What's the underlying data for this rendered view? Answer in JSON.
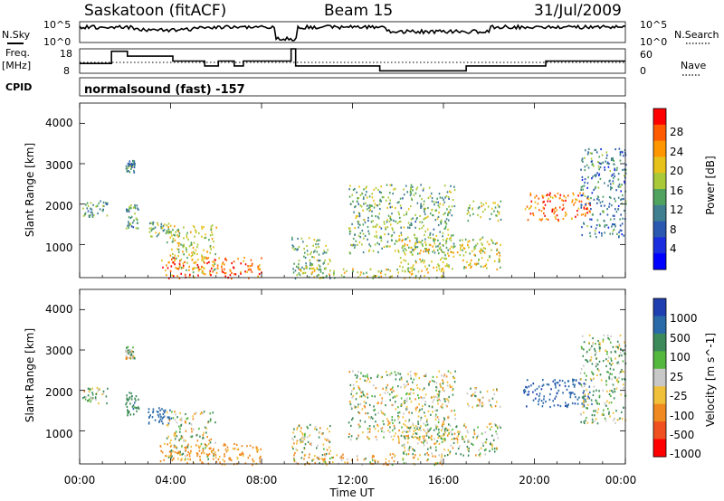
{
  "header": {
    "station": "Saskatoon (fitACF)",
    "beam": "Beam 15",
    "date": "31/Jul/2009"
  },
  "top_strip": {
    "left_label": "N.Sky",
    "left_ticks": [
      "10^5",
      "10^0"
    ],
    "right_ticks": [
      "10^5",
      "10^0"
    ],
    "right_label": "N.Search"
  },
  "freq_strip": {
    "left_label_line1": "Freq.",
    "left_label_line2": "[MHz]",
    "left_ticks": [
      "18",
      "8"
    ],
    "right_ticks": [
      "60",
      "0"
    ],
    "right_label": "Nave"
  },
  "cpid": {
    "label": "CPID",
    "value": "normalsound (fast) -157"
  },
  "x_axis": {
    "title": "Time UT",
    "ticks": [
      "00:00",
      "04:00",
      "08:00",
      "12:00",
      "16:00",
      "20:00",
      "00:00"
    ]
  },
  "y_axis": {
    "title": "Slant Range [km]",
    "ticks": [
      "4000",
      "3000",
      "2000",
      "1000"
    ]
  },
  "power_colorbar": {
    "title": "Power [dB]",
    "ticks": [
      "28",
      "24",
      "20",
      "16",
      "12",
      "8",
      "4"
    ],
    "colors": [
      "#ff0000",
      "#ff5a00",
      "#ff9600",
      "#e7c21a",
      "#a9c939",
      "#4fa35f",
      "#3f7f90",
      "#2a58b0",
      "#1a2ee0",
      "#0000ff"
    ]
  },
  "velocity_colorbar": {
    "title": "Velocity [m s^-1]",
    "ticks": [
      "1000",
      "500",
      "100",
      "25",
      "-25",
      "-100",
      "-500",
      "-1000"
    ],
    "colors": [
      "#1f3fb0",
      "#2a6aa8",
      "#3c8a5a",
      "#54b83f",
      "#c8c8c8",
      "#f0c03a",
      "#f08a20",
      "#f05020",
      "#ff0000"
    ]
  },
  "chart_data": {
    "type": "heatmap",
    "x_range_hours": [
      0,
      24
    ],
    "y_range_km": [
      180,
      4500
    ],
    "power_db_range": [
      0,
      30
    ],
    "velocity_range": [
      -1000,
      1000
    ],
    "data_gap_hours": [
      8.0,
      9.3
    ],
    "echo_regions": [
      {
        "t": [
          0.1,
          1.2
        ],
        "r": [
          1700,
          2100
        ],
        "power": 12,
        "vel": 0
      },
      {
        "t": [
          2.0,
          2.4
        ],
        "r": [
          2800,
          3100
        ],
        "power": 10,
        "vel": 0
      },
      {
        "t": [
          2.0,
          2.6
        ],
        "r": [
          1400,
          2000
        ],
        "power": 12,
        "vel": 200
      },
      {
        "t": [
          3.0,
          4.0
        ],
        "r": [
          1200,
          1600
        ],
        "power": 14,
        "vel": 600
      },
      {
        "t": [
          3.8,
          6.0
        ],
        "r": [
          300,
          1500
        ],
        "power": 18,
        "vel": -10
      },
      {
        "t": [
          3.5,
          8.0
        ],
        "r": [
          180,
          700
        ],
        "power": 26,
        "vel": -200
      },
      {
        "t": [
          9.3,
          11.0
        ],
        "r": [
          180,
          1200
        ],
        "power": 14,
        "vel": 0
      },
      {
        "t": [
          9.5,
          16.0
        ],
        "r": [
          180,
          450
        ],
        "power": 18,
        "vel": -80
      },
      {
        "t": [
          11.8,
          16.5
        ],
        "r": [
          800,
          2500
        ],
        "power": 14,
        "vel": 0
      },
      {
        "t": [
          14.0,
          18.5
        ],
        "r": [
          400,
          1200
        ],
        "power": 18,
        "vel": 0
      },
      {
        "t": [
          17.0,
          18.5
        ],
        "r": [
          1600,
          2100
        ],
        "power": 16,
        "vel": 0
      },
      {
        "t": [
          19.5,
          22.5
        ],
        "r": [
          1600,
          2300
        ],
        "power": 26,
        "vel": 700
      },
      {
        "t": [
          22.0,
          24.0
        ],
        "r": [
          1200,
          3400
        ],
        "power": 10,
        "vel": 50
      }
    ],
    "frequency_mhz": [
      {
        "t": [
          0.0,
          1.4
        ],
        "f": 12
      },
      {
        "t": [
          1.4,
          2.1
        ],
        "f": 17
      },
      {
        "t": [
          2.1,
          2.9
        ],
        "f": 15
      },
      {
        "t": [
          2.9,
          4.1
        ],
        "f": 15
      },
      {
        "t": [
          4.1,
          5.5
        ],
        "f": 13
      },
      {
        "t": [
          5.5,
          6.1
        ],
        "f": 11
      },
      {
        "t": [
          6.1,
          6.8
        ],
        "f": 13
      },
      {
        "t": [
          6.8,
          7.2
        ],
        "f": 11
      },
      {
        "t": [
          7.2,
          9.3
        ],
        "f": 13
      },
      {
        "t": [
          9.3,
          9.5
        ],
        "f": 18
      },
      {
        "t": [
          9.5,
          13.2
        ],
        "f": 11
      },
      {
        "t": [
          13.2,
          17.0
        ],
        "f": 9
      },
      {
        "t": [
          17.0,
          18.2
        ],
        "f": 11
      },
      {
        "t": [
          18.2,
          20.5
        ],
        "f": 11
      },
      {
        "t": [
          20.5,
          24.0
        ],
        "f": 13
      }
    ],
    "nave_reference": 30
  }
}
